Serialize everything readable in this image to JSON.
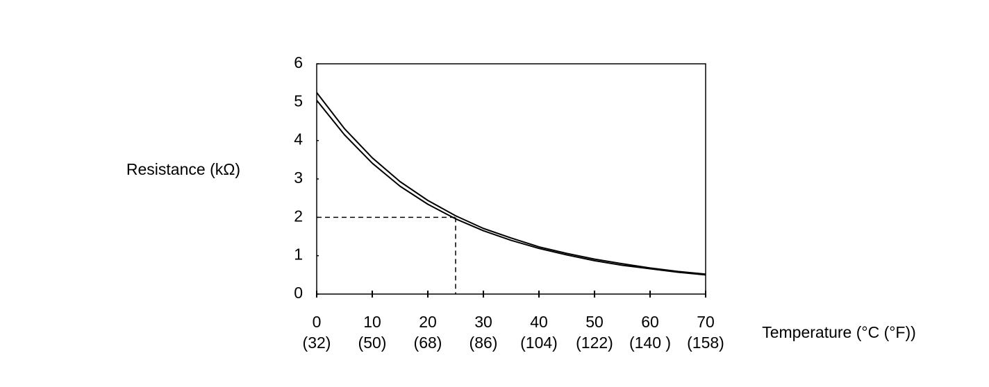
{
  "chart_data": {
    "type": "line",
    "y_label": "Resistance (kΩ)",
    "x_label": "Temperature (°C (°F))",
    "x": [
      0,
      5,
      10,
      15,
      20,
      25,
      30,
      35,
      40,
      45,
      50,
      55,
      60,
      65,
      70
    ],
    "series": [
      {
        "color": "#000000",
        "values": [
          5.25,
          4.31,
          3.55,
          2.93,
          2.44,
          2.04,
          1.71,
          1.46,
          1.23,
          1.06,
          0.91,
          0.79,
          0.68,
          0.59,
          0.52
        ]
      },
      {
        "color": "#000000",
        "values": [
          5.05,
          4.15,
          3.41,
          2.81,
          2.34,
          1.96,
          1.65,
          1.4,
          1.19,
          1.02,
          0.87,
          0.75,
          0.66,
          0.57,
          0.5
        ]
      }
    ],
    "reference": {
      "x": 25,
      "y": 2
    },
    "xlim": [
      0,
      70
    ],
    "xticks": [
      0,
      10,
      20,
      30,
      40,
      50,
      60,
      70
    ],
    "xtick_sublabels": [
      "(32)",
      "(50)",
      "(68)",
      "(86)",
      "(104)",
      "(122)",
      "(140 )",
      "(158)"
    ],
    "ylim": [
      0,
      6
    ],
    "yticks": [
      0,
      1,
      2,
      3,
      4,
      5,
      6
    ]
  }
}
